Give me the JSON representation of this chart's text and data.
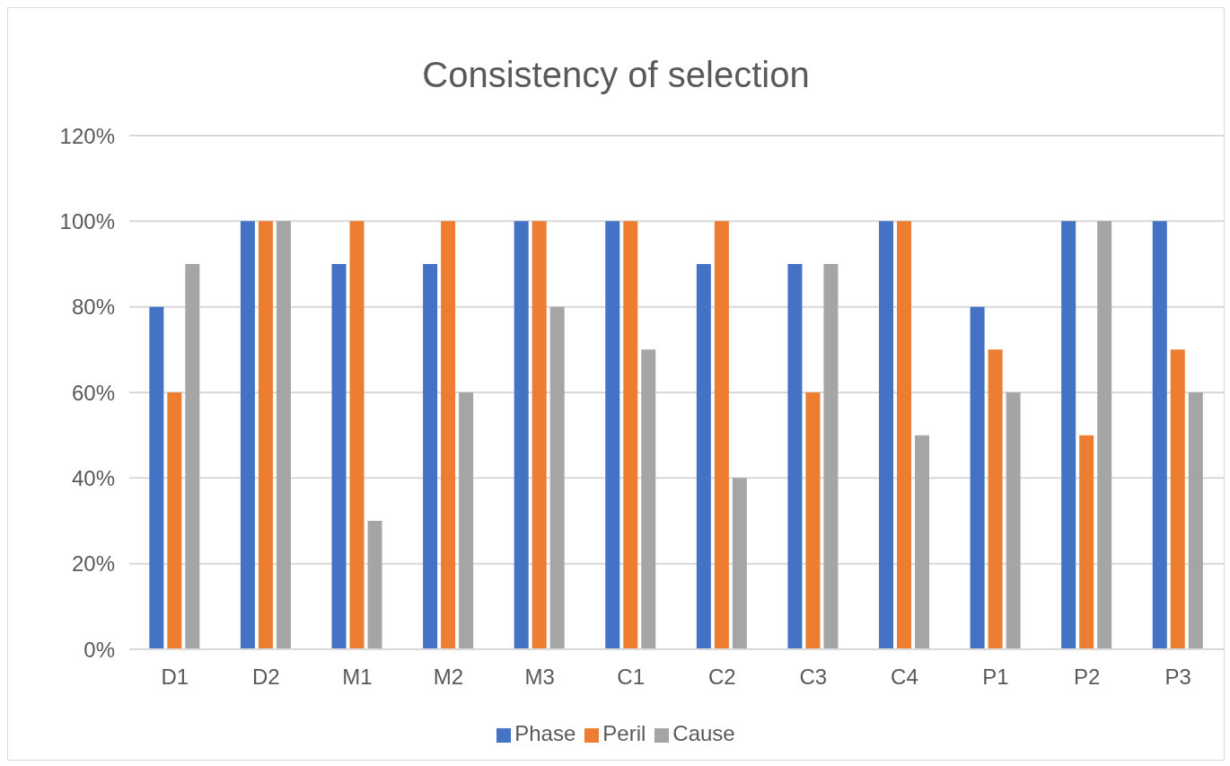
{
  "chart_data": {
    "type": "bar",
    "title": "Consistency of selection",
    "categories": [
      "D1",
      "D2",
      "M1",
      "M2",
      "M3",
      "C1",
      "C2",
      "C3",
      "C4",
      "P1",
      "P2",
      "P3"
    ],
    "series": [
      {
        "name": "Phase",
        "color": "#4472c4",
        "values": [
          80,
          100,
          90,
          90,
          100,
          100,
          90,
          90,
          100,
          80,
          100,
          100
        ]
      },
      {
        "name": "Peril",
        "color": "#ed7d31",
        "values": [
          60,
          100,
          100,
          100,
          100,
          100,
          100,
          60,
          100,
          70,
          50,
          70
        ]
      },
      {
        "name": "Cause",
        "color": "#a5a5a5",
        "values": [
          90,
          100,
          30,
          60,
          80,
          70,
          40,
          90,
          50,
          60,
          100,
          60
        ]
      }
    ],
    "ylim": [
      0,
      120
    ],
    "yticks": [
      {
        "value": 0,
        "label": "0%"
      },
      {
        "value": 20,
        "label": "20%"
      },
      {
        "value": 40,
        "label": "40%"
      },
      {
        "value": 60,
        "label": "60%"
      },
      {
        "value": 80,
        "label": "80%"
      },
      {
        "value": 100,
        "label": "100%"
      },
      {
        "value": 120,
        "label": "120%"
      }
    ],
    "grid": "y",
    "legend": "bottom"
  }
}
